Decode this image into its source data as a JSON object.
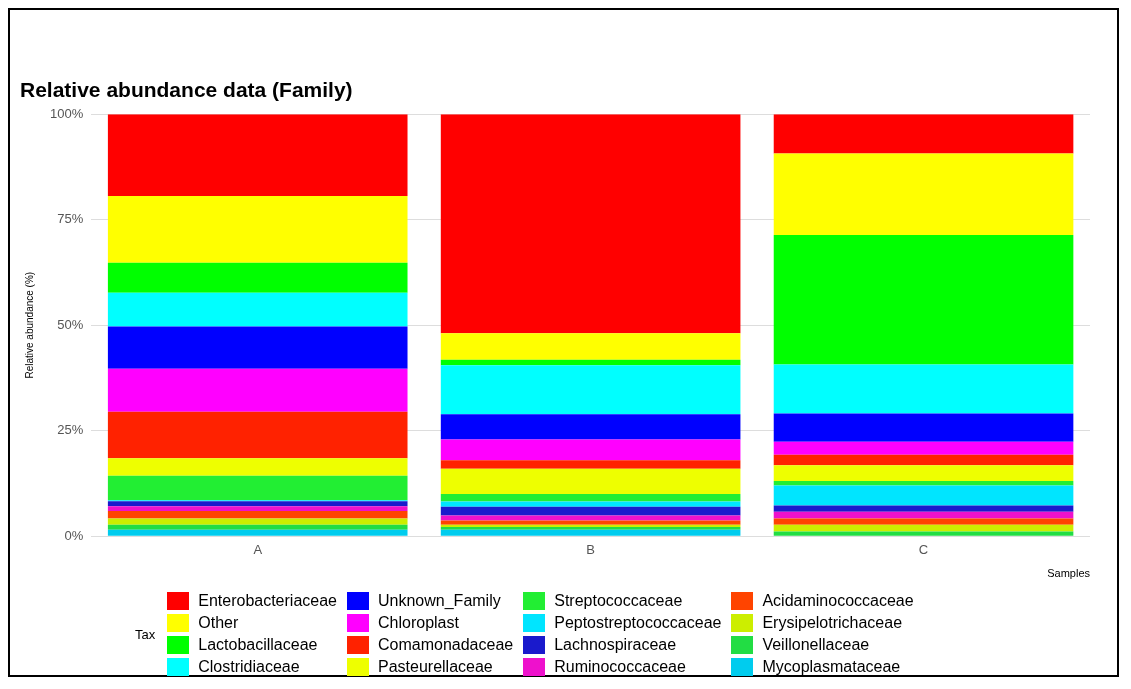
{
  "chart_data": {
    "type": "bar",
    "title": "Relative abundance data (Family)",
    "xlabel": "Samples",
    "ylabel": "Relative abundance (%)",
    "legend_title": "Tax",
    "categories": [
      "A",
      "B",
      "C"
    ],
    "stacked": true,
    "ylim": [
      0,
      100
    ],
    "yticks": [
      {
        "value": 0,
        "label": "0%"
      },
      {
        "value": 25,
        "label": "25%"
      },
      {
        "value": 50,
        "label": "50%"
      },
      {
        "value": 75,
        "label": "75%"
      },
      {
        "value": 100,
        "label": "100%"
      }
    ],
    "grid": "y",
    "legend": "bottom",
    "series": [
      {
        "name": "Mycoplasmataceae",
        "color": "#00ccee",
        "values": [
          1.5,
          1.5,
          0
        ]
      },
      {
        "name": "Veillonellaceae",
        "color": "#22dd44",
        "values": [
          1.2,
          0.7,
          1.1
        ]
      },
      {
        "name": "Erysipelotrichaceae",
        "color": "#ccee00",
        "values": [
          1.5,
          0.5,
          1.6
        ]
      },
      {
        "name": "Acidaminococcaceae",
        "color": "#ff4400",
        "values": [
          1.8,
          1.0,
          1.5
        ]
      },
      {
        "name": "Ruminococcaceae",
        "color": "#ee11cc",
        "values": [
          1.1,
          1.2,
          1.6
        ]
      },
      {
        "name": "Lachnospiraceae",
        "color": "#1a1acc",
        "values": [
          1.2,
          2.1,
          1.5
        ]
      },
      {
        "name": "Peptostreptococcaceae",
        "color": "#00e5ff",
        "values": [
          0.2,
          1.2,
          4.7
        ]
      },
      {
        "name": "Streptococcaceae",
        "color": "#22ee33",
        "values": [
          5.8,
          1.8,
          1.1
        ]
      },
      {
        "name": "Pasteurellaceae",
        "color": "#eeff00",
        "values": [
          4.2,
          6.0,
          3.7
        ]
      },
      {
        "name": "Comamonadaceae",
        "color": "#ff2200",
        "values": [
          11.0,
          2.0,
          2.5
        ]
      },
      {
        "name": "Chloroplast",
        "color": "#ff00ff",
        "values": [
          10.2,
          4.9,
          3.1
        ]
      },
      {
        "name": "Unknown_Family",
        "color": "#0000ff",
        "values": [
          10.0,
          6.0,
          6.7
        ]
      },
      {
        "name": "Clostridiaceae",
        "color": "#00ffff",
        "values": [
          8.0,
          11.6,
          11.6
        ]
      },
      {
        "name": "Lactobacillaceae",
        "color": "#00ff00",
        "values": [
          7.1,
          1.3,
          30.7
        ]
      },
      {
        "name": "Other",
        "color": "#ffff00",
        "values": [
          15.8,
          6.3,
          19.3
        ]
      },
      {
        "name": "Enterobacteriaceae",
        "color": "#ff0000",
        "values": [
          19.4,
          51.9,
          9.3
        ]
      }
    ]
  }
}
